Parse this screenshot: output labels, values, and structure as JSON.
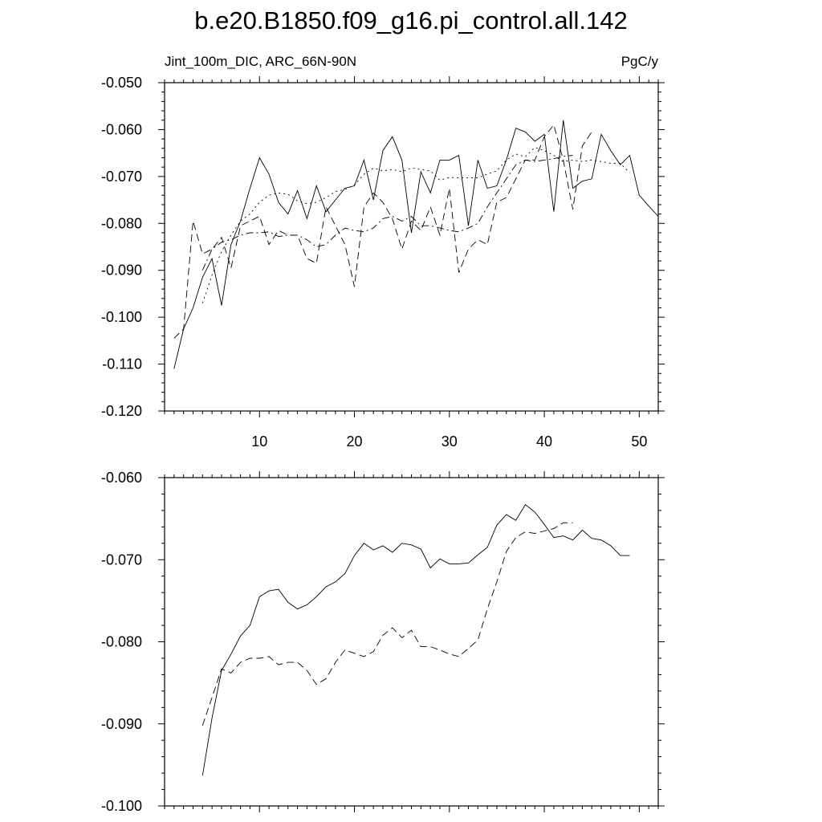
{
  "title": "b.e20.B1850.f09_g16.pi_control.all.142",
  "subtitle_left": "Jint_100m_DIC, ARC_66N-90N",
  "subtitle_right": "PgC/y",
  "chart_data": [
    {
      "type": "line",
      "title": "b.e20.B1850.f09_g16.pi_control.all.142",
      "ylabel": "",
      "xlabel": "",
      "xlim": [
        0,
        52
      ],
      "ylim": [
        -0.12,
        -0.05
      ],
      "xticks": [
        10,
        20,
        30,
        40,
        50
      ],
      "yticks": [
        -0.12,
        -0.11,
        -0.1,
        -0.09,
        -0.08,
        -0.07,
        -0.06,
        -0.05
      ],
      "ytick_labels": [
        "-0.120",
        "-0.110",
        "-0.100",
        "-0.090",
        "-0.080",
        "-0.070",
        "-0.060",
        "-0.050"
      ],
      "series": [
        {
          "style": "solid",
          "x": [
            1,
            2,
            3,
            4,
            5,
            6,
            7,
            8,
            9,
            10,
            11,
            12,
            13,
            14,
            15,
            16,
            17,
            18,
            19,
            20,
            21,
            22,
            23,
            24,
            25,
            26,
            27,
            28,
            29,
            30,
            31,
            32,
            33,
            34,
            35,
            36,
            37,
            38,
            39,
            40,
            41,
            42,
            43,
            44,
            45,
            46,
            47,
            48,
            49,
            50,
            51,
            52
          ],
          "y": [
            -0.111,
            -0.1025,
            -0.098,
            -0.0915,
            -0.0875,
            -0.0975,
            -0.0845,
            -0.0795,
            -0.0725,
            -0.066,
            -0.0695,
            -0.0755,
            -0.078,
            -0.073,
            -0.079,
            -0.072,
            -0.0775,
            -0.075,
            -0.0725,
            -0.072,
            -0.0665,
            -0.075,
            -0.0645,
            -0.0615,
            -0.0665,
            -0.082,
            -0.069,
            -0.0735,
            -0.0665,
            -0.0665,
            -0.0655,
            -0.0805,
            -0.0665,
            -0.0725,
            -0.072,
            -0.0665,
            -0.0597,
            -0.0605,
            -0.0625,
            -0.061,
            -0.0775,
            -0.058,
            -0.0725,
            -0.071,
            -0.0705,
            -0.061,
            -0.0645,
            -0.0675,
            -0.0655,
            -0.074,
            -0.0763,
            -0.0785
          ]
        },
        {
          "style": "dashed",
          "x": [
            1,
            2,
            3,
            4,
            5,
            6,
            7,
            8,
            9,
            10,
            11,
            12,
            13,
            14,
            15,
            16,
            17,
            18,
            19,
            20,
            21,
            22,
            23,
            24,
            25,
            26,
            27,
            28,
            29,
            30,
            31,
            32,
            33,
            34,
            35,
            36,
            37,
            38,
            39,
            40,
            41,
            42,
            43,
            44,
            45
          ],
          "y": [
            -0.1045,
            -0.1025,
            -0.0795,
            -0.0865,
            -0.0855,
            -0.083,
            -0.0895,
            -0.0805,
            -0.0795,
            -0.0785,
            -0.0845,
            -0.0815,
            -0.0825,
            -0.0825,
            -0.0875,
            -0.0885,
            -0.0765,
            -0.0805,
            -0.0845,
            -0.0935,
            -0.0765,
            -0.0735,
            -0.0755,
            -0.079,
            -0.0855,
            -0.0795,
            -0.0815,
            -0.0765,
            -0.0825,
            -0.0725,
            -0.0905,
            -0.0855,
            -0.0835,
            -0.0845,
            -0.0755,
            -0.0745,
            -0.0705,
            -0.0665,
            -0.0665,
            -0.0615,
            -0.059,
            -0.0665,
            -0.077,
            -0.0635,
            -0.0605
          ]
        },
        {
          "style": "dash-dot",
          "x": [
            4,
            5,
            6,
            7,
            8,
            9,
            10,
            11,
            12,
            13,
            14,
            15,
            16,
            17,
            18,
            19,
            20,
            21,
            22,
            23,
            24,
            25,
            26,
            27,
            28,
            29,
            30,
            31,
            32,
            33,
            34,
            35,
            36,
            37,
            38,
            39,
            40,
            41,
            42,
            43
          ],
          "y": [
            -0.09,
            -0.0855,
            -0.084,
            -0.0835,
            -0.0825,
            -0.082,
            -0.082,
            -0.0818,
            -0.0828,
            -0.0825,
            -0.0825,
            -0.0835,
            -0.085,
            -0.0845,
            -0.0825,
            -0.081,
            -0.0815,
            -0.0818,
            -0.081,
            -0.079,
            -0.0785,
            -0.0795,
            -0.0785,
            -0.0805,
            -0.0805,
            -0.081,
            -0.0815,
            -0.0818,
            -0.081,
            -0.08,
            -0.0765,
            -0.0735,
            -0.0705,
            -0.0675,
            -0.0665,
            -0.0668,
            -0.0665,
            -0.0662,
            -0.0657,
            -0.0655
          ]
        },
        {
          "style": "dotted",
          "x": [
            4,
            5,
            6,
            7,
            8,
            9,
            10,
            11,
            12,
            13,
            14,
            15,
            16,
            17,
            18,
            19,
            20,
            21,
            22,
            23,
            24,
            25,
            26,
            27,
            28,
            29,
            30,
            31,
            32,
            33,
            34,
            35,
            36,
            37,
            38,
            39,
            40,
            41,
            42,
            43,
            44,
            45,
            46,
            47,
            48,
            49
          ],
          "y": [
            -0.097,
            -0.091,
            -0.086,
            -0.0825,
            -0.0795,
            -0.078,
            -0.0755,
            -0.074,
            -0.0735,
            -0.0738,
            -0.0752,
            -0.0758,
            -0.0755,
            -0.0745,
            -0.0732,
            -0.0728,
            -0.0718,
            -0.0695,
            -0.0682,
            -0.0688,
            -0.0685,
            -0.069,
            -0.0682,
            -0.0685,
            -0.0688,
            -0.0708,
            -0.0702,
            -0.0703,
            -0.0703,
            -0.0703,
            -0.0695,
            -0.0688,
            -0.0665,
            -0.0652,
            -0.0658,
            -0.0638,
            -0.0645,
            -0.0655,
            -0.0668,
            -0.0665,
            -0.0668,
            -0.0665,
            -0.0668,
            -0.0672,
            -0.0672,
            -0.0692
          ]
        }
      ]
    },
    {
      "type": "line",
      "ylabel": "",
      "xlabel": "",
      "xlim": [
        0,
        52
      ],
      "ylim": [
        -0.1,
        -0.06
      ],
      "xticks": [
        10,
        20,
        30,
        40,
        50
      ],
      "yticks": [
        -0.1,
        -0.09,
        -0.08,
        -0.07,
        -0.06
      ],
      "ytick_labels": [
        "-0.100",
        "-0.090",
        "-0.080",
        "-0.070",
        "-0.060"
      ],
      "series": [
        {
          "style": "solid",
          "x": [
            4,
            5,
            6,
            7,
            8,
            9,
            10,
            11,
            12,
            13,
            14,
            15,
            16,
            17,
            18,
            19,
            20,
            21,
            22,
            23,
            24,
            25,
            26,
            27,
            28,
            29,
            30,
            31,
            32,
            33,
            34,
            35,
            36,
            37,
            38,
            39,
            40,
            41,
            42,
            43,
            44,
            45,
            46,
            47,
            48,
            49
          ],
          "y": [
            -0.0963,
            -0.0893,
            -0.0835,
            -0.0815,
            -0.0793,
            -0.078,
            -0.0745,
            -0.0738,
            -0.0736,
            -0.0752,
            -0.076,
            -0.0755,
            -0.0745,
            -0.0733,
            -0.0727,
            -0.0717,
            -0.0695,
            -0.068,
            -0.0688,
            -0.0683,
            -0.0691,
            -0.068,
            -0.0682,
            -0.0687,
            -0.071,
            -0.0699,
            -0.0705,
            -0.0705,
            -0.0704,
            -0.0694,
            -0.0685,
            -0.0658,
            -0.0645,
            -0.0652,
            -0.0633,
            -0.0642,
            -0.0657,
            -0.0673,
            -0.0671,
            -0.0676,
            -0.0664,
            -0.0674,
            -0.0676,
            -0.0683,
            -0.0695,
            -0.0695
          ]
        },
        {
          "style": "dashed",
          "x": [
            4,
            5,
            6,
            7,
            8,
            9,
            10,
            11,
            12,
            13,
            14,
            15,
            16,
            17,
            18,
            19,
            20,
            21,
            22,
            23,
            24,
            25,
            26,
            27,
            28,
            29,
            30,
            31,
            32,
            33,
            34,
            35,
            36,
            37,
            38,
            39,
            40,
            41,
            42,
            43
          ],
          "y": [
            -0.0902,
            -0.0868,
            -0.0833,
            -0.0838,
            -0.0825,
            -0.082,
            -0.082,
            -0.0818,
            -0.0828,
            -0.0825,
            -0.0825,
            -0.0835,
            -0.0852,
            -0.0845,
            -0.0825,
            -0.081,
            -0.0814,
            -0.0818,
            -0.0812,
            -0.0792,
            -0.0783,
            -0.0795,
            -0.0786,
            -0.0806,
            -0.0806,
            -0.081,
            -0.0815,
            -0.0818,
            -0.0808,
            -0.0798,
            -0.076,
            -0.0727,
            -0.069,
            -0.0673,
            -0.0666,
            -0.0668,
            -0.0665,
            -0.0662,
            -0.0655,
            -0.0655
          ]
        }
      ]
    }
  ]
}
